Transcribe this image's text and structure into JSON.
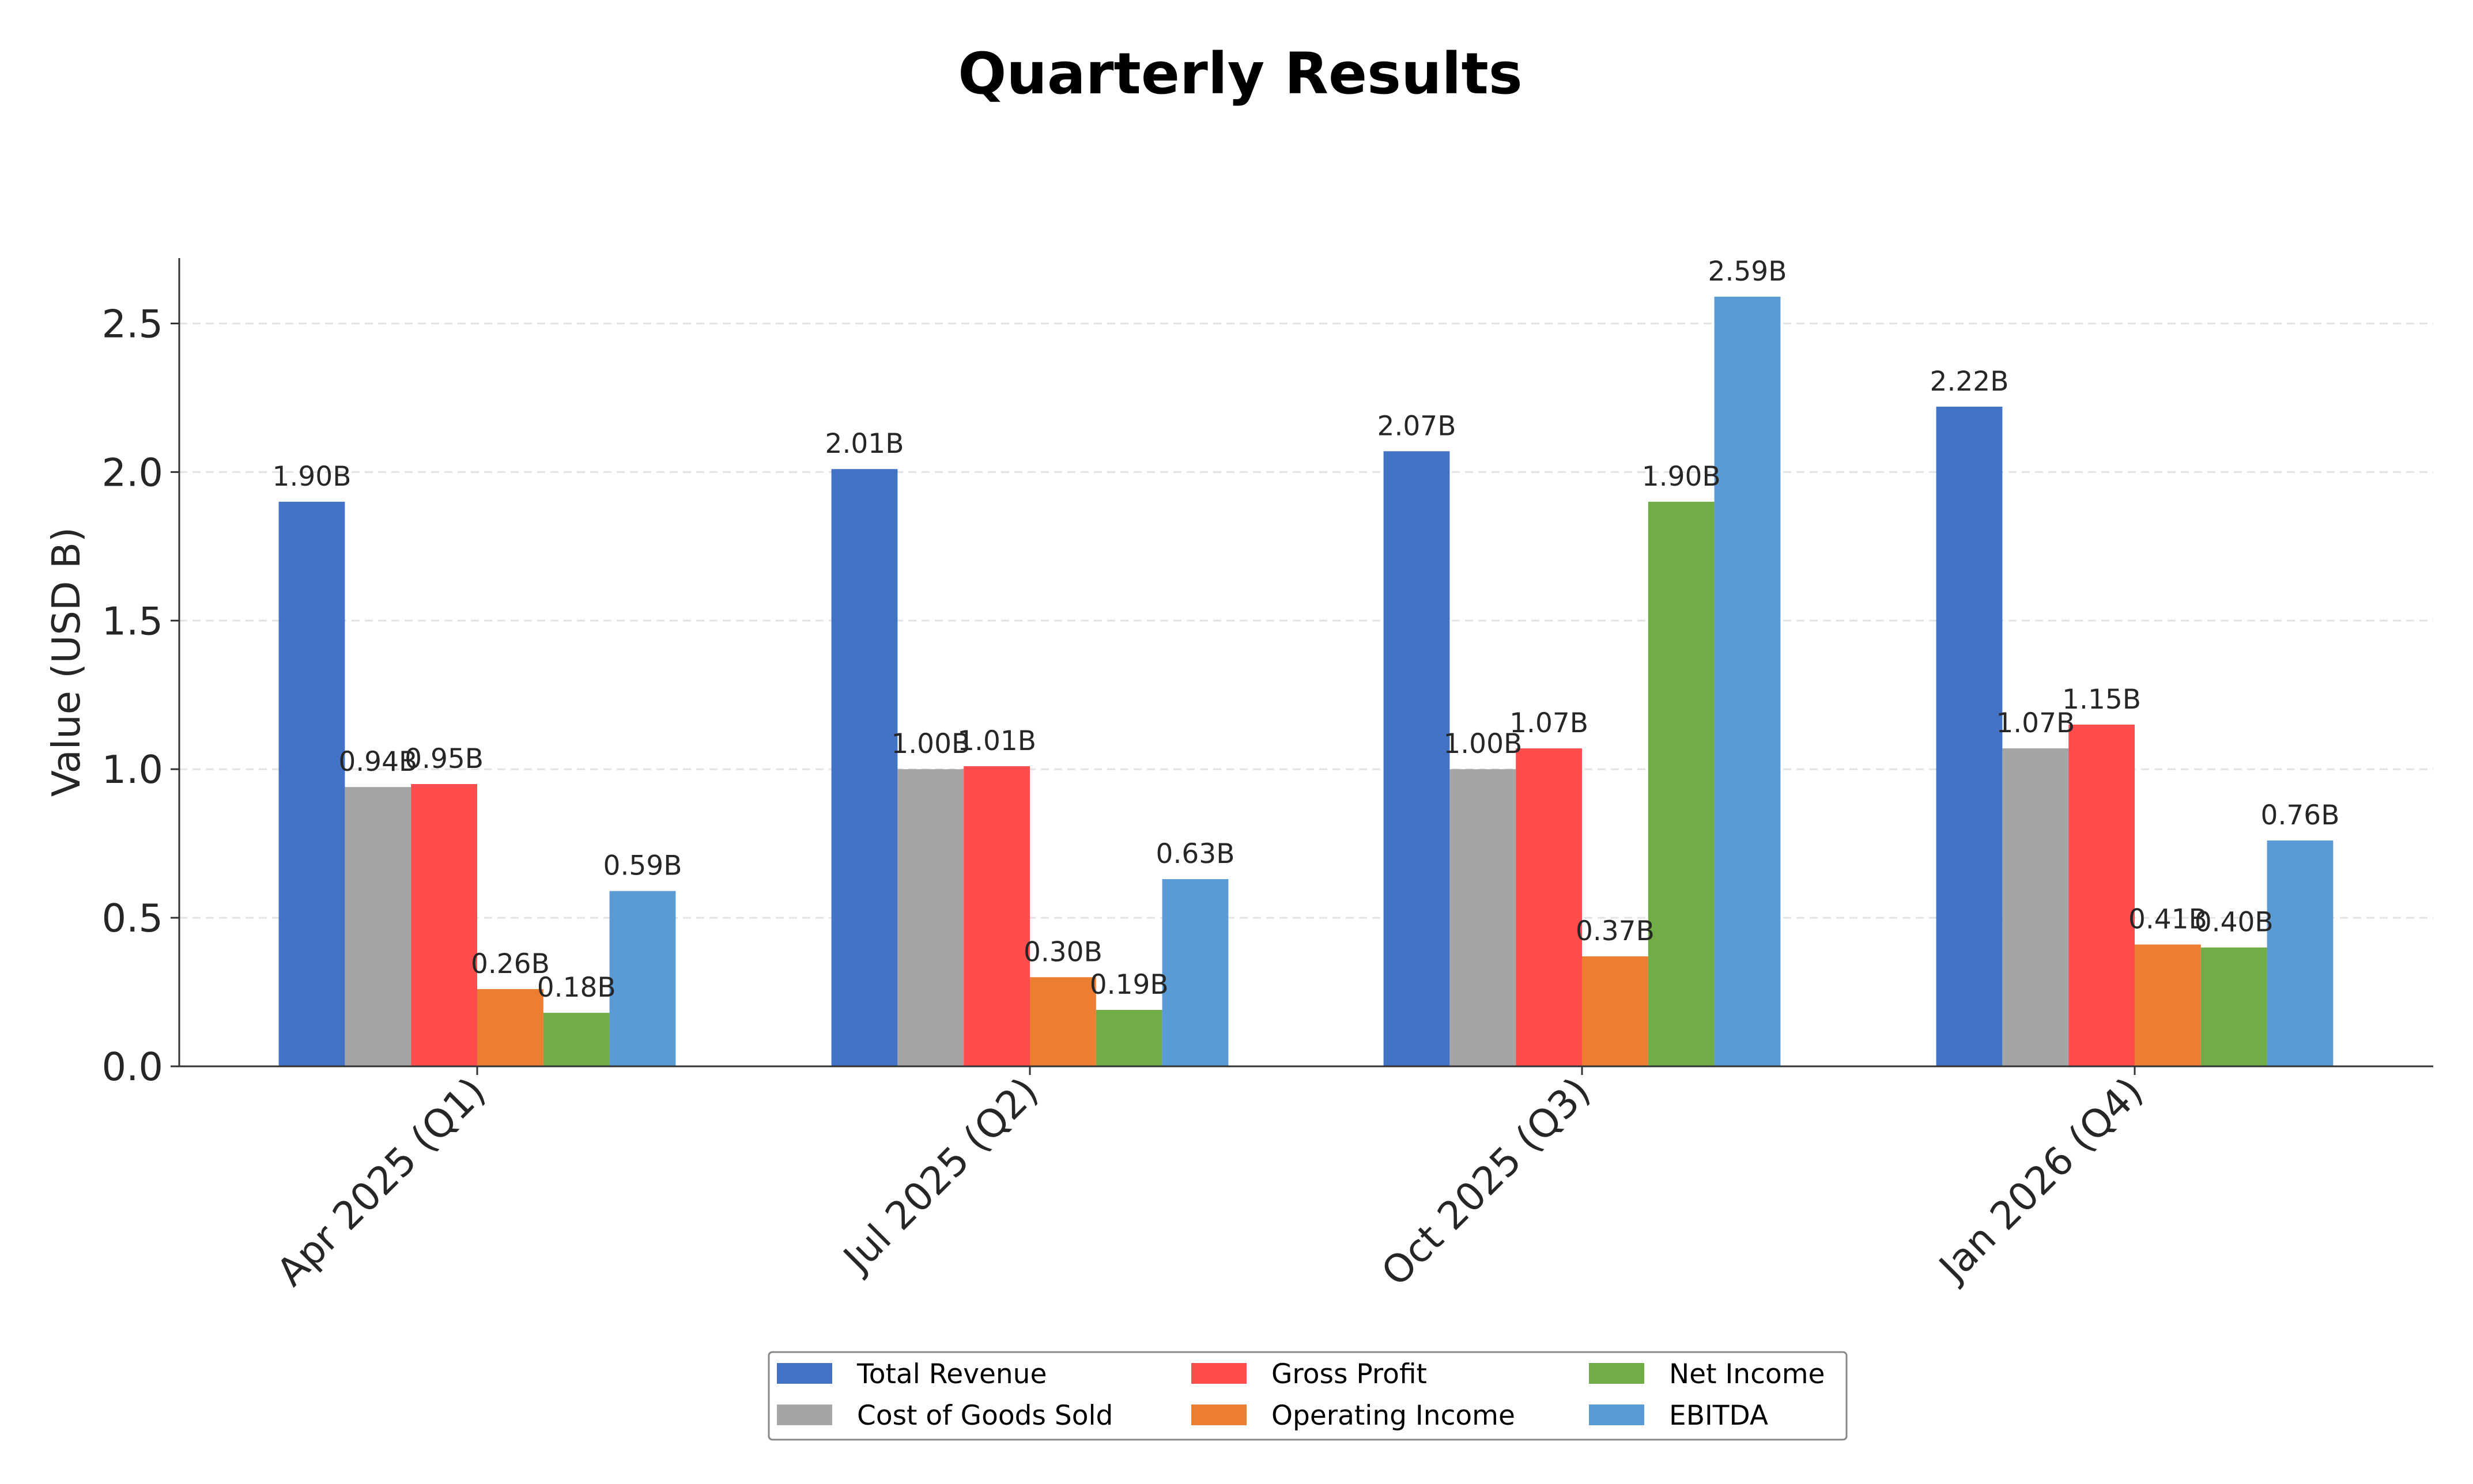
{
  "chart_data": {
    "type": "bar",
    "title": "Quarterly Results",
    "xlabel": "",
    "ylabel": "Value (USD B)",
    "ylim": [
      0,
      2.72
    ],
    "yticks": [
      "0.0",
      "0.5",
      "1.0",
      "1.5",
      "2.0",
      "2.5"
    ],
    "grid": "horizontal dashed",
    "legend_position": "bottom-center",
    "categories": [
      "Apr 2025 (Q1)",
      "Jul 2025 (Q2)",
      "Oct 2025 (Q3)",
      "Jan 2026 (Q4)"
    ],
    "series": [
      {
        "name": "Total Revenue",
        "color": "#4472C4",
        "values": [
          1.9,
          2.01,
          2.07,
          2.22
        ],
        "labels": [
          "1.90B",
          "2.01B",
          "2.07B",
          "2.22B"
        ]
      },
      {
        "name": "Cost of Goods Sold",
        "color": "#A5A5A5",
        "values": [
          0.94,
          1.0,
          1.0,
          1.07
        ],
        "labels": [
          "0.94B",
          "1.00B",
          "1.00B",
          "1.07B"
        ]
      },
      {
        "name": "Gross Profit",
        "color": "#FF4C4C",
        "values": [
          0.95,
          1.01,
          1.07,
          1.15
        ],
        "labels": [
          "0.95B",
          "1.01B",
          "1.07B",
          "1.15B"
        ]
      },
      {
        "name": "Operating Income",
        "color": "#ED7D31",
        "values": [
          0.26,
          0.3,
          0.37,
          0.41
        ],
        "labels": [
          "0.26B",
          "0.30B",
          "0.37B",
          "0.41B"
        ]
      },
      {
        "name": "Net Income",
        "color": "#70AD47",
        "values": [
          0.18,
          0.19,
          1.9,
          0.4
        ],
        "labels": [
          "0.18B",
          "0.19B",
          "1.90B",
          "0.40B"
        ]
      },
      {
        "name": "EBITDA",
        "color": "#5B9BD5",
        "values": [
          0.59,
          0.63,
          2.59,
          0.76
        ],
        "labels": [
          "0.59B",
          "0.63B",
          "2.59B",
          "0.76B"
        ]
      }
    ]
  }
}
